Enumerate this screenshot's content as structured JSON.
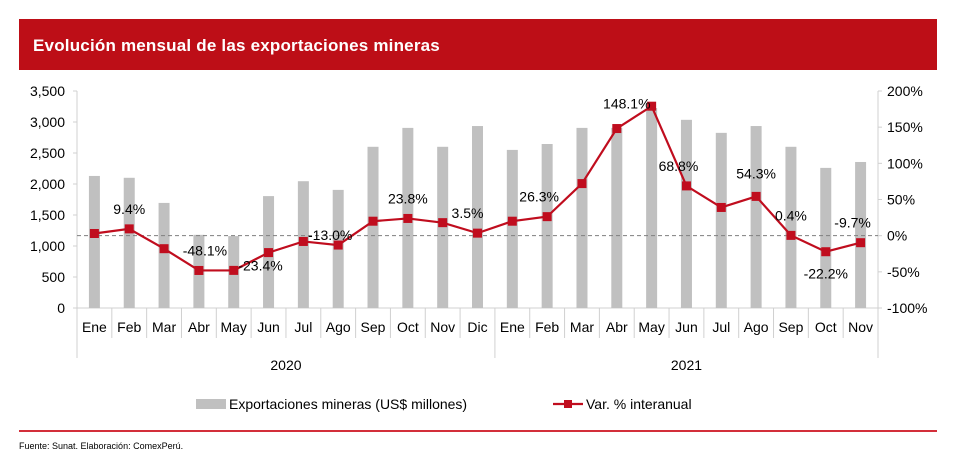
{
  "header": {
    "title": "Evolución mensual de las exportaciones mineras"
  },
  "footer": {
    "source": "Fuente: Sunat. Elaboración: ComexPerú."
  },
  "colors": {
    "banner": "#bd0e17",
    "bar": "#c0c0c0",
    "line": "#c00d1e",
    "footer_rule": "#d32f3a"
  },
  "chart_data": {
    "type": "bar",
    "title": "Evolución mensual de las exportaciones mineras",
    "categories": [
      "Ene",
      "Feb",
      "Mar",
      "Abr",
      "May",
      "Jun",
      "Jul",
      "Ago",
      "Sep",
      "Oct",
      "Nov",
      "Dic",
      "Ene",
      "Feb",
      "Mar",
      "Abr",
      "May",
      "Jun",
      "Jul",
      "Ago",
      "Sep",
      "Oct",
      "Nov"
    ],
    "groups": [
      {
        "label": "2020",
        "count": 12
      },
      {
        "label": "2021",
        "count": 11
      }
    ],
    "series": [
      {
        "name": "Exportaciones mineras (US$ millones)",
        "type": "bar",
        "axis": "left",
        "values": [
          2130,
          2100,
          1695,
          1180,
          1160,
          1805,
          2045,
          1905,
          2600,
          2905,
          2600,
          2935,
          2550,
          2645,
          2905,
          2905,
          3225,
          3035,
          2825,
          2935,
          2600,
          2260,
          2355
        ]
      },
      {
        "name": "Var. % interanual",
        "type": "line",
        "axis": "right",
        "values": [
          3.0,
          9.4,
          -18.0,
          -48.1,
          -48.0,
          -23.4,
          -8.0,
          -13.0,
          20.0,
          23.8,
          18.0,
          3.5,
          20.0,
          26.3,
          72.0,
          148.1,
          179.0,
          68.8,
          39.0,
          54.3,
          0.4,
          -22.2,
          -9.7
        ],
        "labels": [
          null,
          "9.4%",
          null,
          "-48.1%",
          null,
          "-23.4%",
          null,
          "-13.0%",
          null,
          "23.8%",
          null,
          "3.5%",
          null,
          "26.3%",
          null,
          "148.1%",
          null,
          "68.8%",
          null,
          "54.3%",
          "0.4%",
          "-22.2%",
          "-9.7%"
        ]
      }
    ],
    "y_left": {
      "min": 0,
      "max": 3500,
      "ticks": [
        "0",
        "500",
        "1,000",
        "1,500",
        "2,000",
        "2,500",
        "3,000",
        "3,500"
      ]
    },
    "y_right": {
      "min": -100,
      "max": 200,
      "ticks": [
        "-100%",
        "-50%",
        "0%",
        "50%",
        "100%",
        "150%",
        "200%"
      ]
    },
    "reference_line": {
      "value": 0,
      "axis": "right",
      "style": "dashed"
    },
    "legend": {
      "position": "bottom",
      "entries": [
        "Exportaciones mineras (US$ millones)",
        "Var. % interanual"
      ]
    },
    "grid": false
  }
}
